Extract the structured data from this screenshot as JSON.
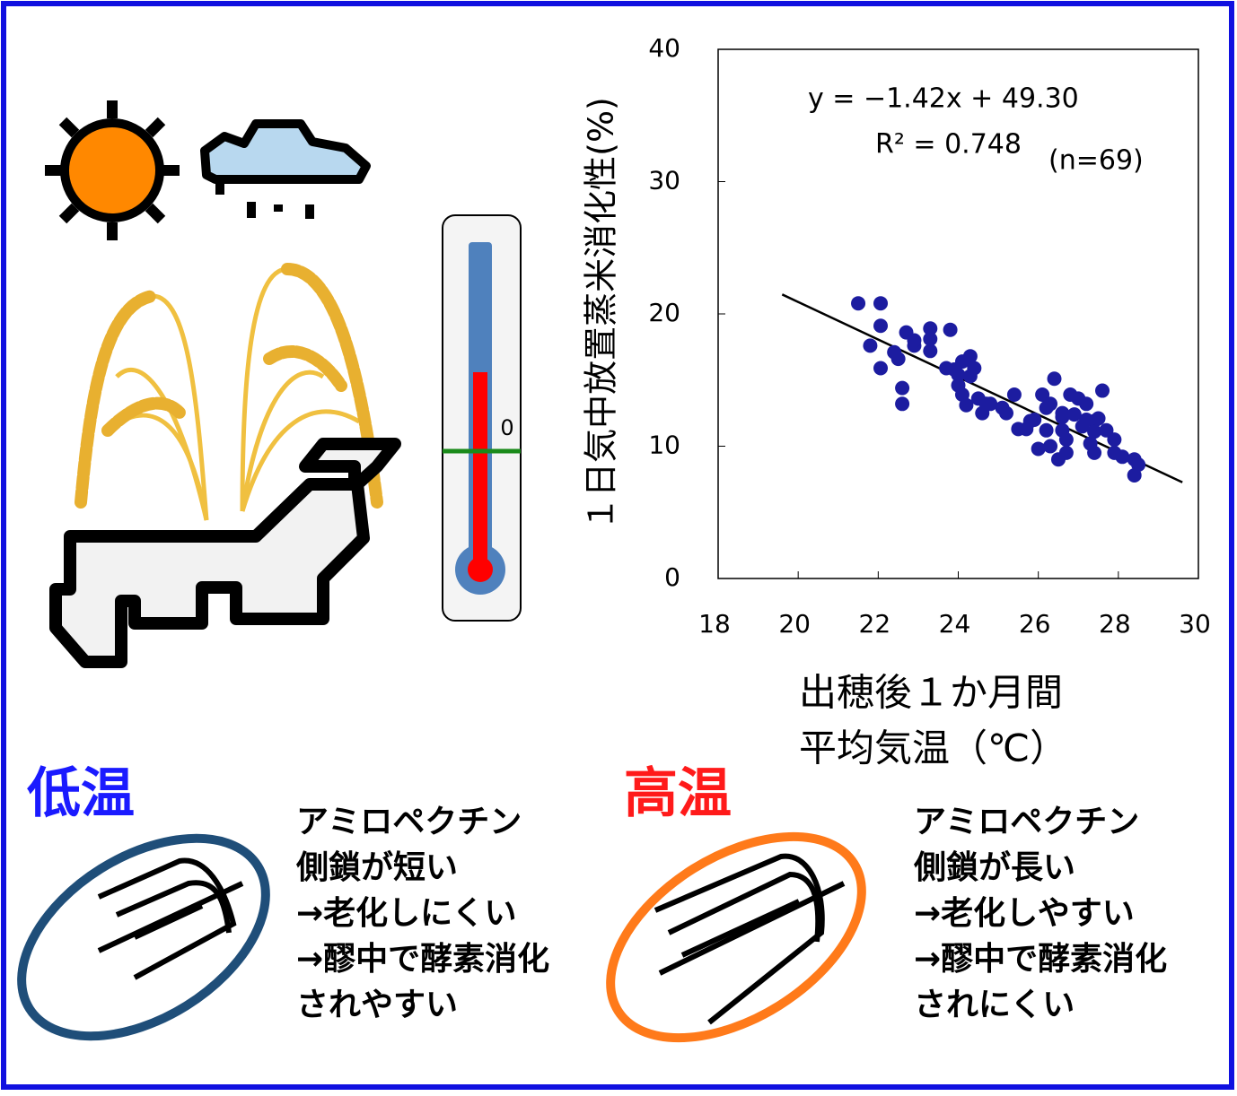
{
  "chart_data": {
    "type": "scatter",
    "ylabel": "１日気中放置蒸米消化性(%)",
    "xlabel": [
      "出穂後１か月間",
      "平均気温（℃）"
    ],
    "annotations": [
      "y = −1.42x + 49.30",
      "R² = 0.748",
      "(n=69)"
    ],
    "color": "#1c1ca0",
    "line_color": "#000000",
    "trendline": {
      "x": [
        19.6,
        29.6
      ],
      "y": [
        21.47,
        7.27
      ]
    },
    "xlim": [
      18,
      30
    ],
    "xticks": [
      18,
      20,
      22,
      24,
      26,
      28,
      30
    ],
    "ylim": [
      0,
      40
    ],
    "yticks": [
      0,
      10,
      20,
      30,
      40
    ],
    "x": [
      21.5,
      22.06,
      21.8,
      22.06,
      22.06,
      22.4,
      22.5,
      22.6,
      22.6,
      22.7,
      22.9,
      22.9,
      23.3,
      23.3,
      23.3,
      23.8,
      23.7,
      24.0,
      24.0,
      24.1,
      24.1,
      24.3,
      24.3,
      24.4,
      24.2,
      24.5,
      24.8,
      25.1,
      25.4,
      25.5,
      25.7,
      25.9,
      26.0,
      26.1,
      26.2,
      26.3,
      26.3,
      26.4,
      26.5,
      26.6,
      26.6,
      26.7,
      26.8,
      26.9,
      27.0,
      27.1,
      27.2,
      27.2,
      27.3,
      27.4,
      27.4,
      27.5,
      27.6,
      27.7,
      27.4,
      27.9,
      28.1,
      28.4,
      28.4,
      28.5,
      26.6,
      26.2,
      25.2,
      24.6,
      25.8,
      27.9,
      23.9,
      26.7,
      24.7
    ],
    "values": [
      20.8,
      20.8,
      17.6,
      19.1,
      15.9,
      17.1,
      16.6,
      14.4,
      13.2,
      18.6,
      17.6,
      18.0,
      18.9,
      18.1,
      17.2,
      18.8,
      15.9,
      15.4,
      14.6,
      13.9,
      16.4,
      15.3,
      16.8,
      15.9,
      13.1,
      13.6,
      13.2,
      12.9,
      13.9,
      11.3,
      11.3,
      12.0,
      9.8,
      13.9,
      11.2,
      13.2,
      10.0,
      15.1,
      9.0,
      11.2,
      12.2,
      10.5,
      13.9,
      12.4,
      13.6,
      11.5,
      12.0,
      13.2,
      10.2,
      11.9,
      11.1,
      12.1,
      14.2,
      11.2,
      9.5,
      9.5,
      9.2,
      9.0,
      7.8,
      8.6,
      12.5,
      12.9,
      12.5,
      12.5,
      11.9,
      10.5,
      15.8,
      9.5,
      13.2
    ]
  },
  "illustration": {
    "thermometer_label": "0"
  },
  "low_temp": {
    "title": "低温",
    "lines": [
      "アミロペクチン",
      "側鎖が短い",
      "→老化しにくい",
      "→醪中で酵素消化",
      "されやすい"
    ]
  },
  "high_temp": {
    "title": "高温",
    "lines": [
      "アミロペクチン",
      "側鎖が長い",
      "→老化しやすい",
      "→醪中で酵素消化",
      "されにくい"
    ]
  }
}
